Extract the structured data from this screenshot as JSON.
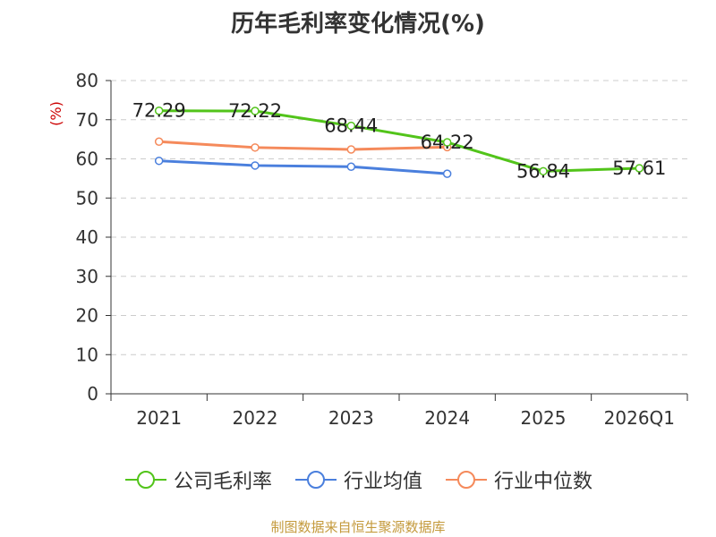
{
  "title": "历年毛利率变化情况(%)",
  "source": "制图数据来自恒生聚源数据库",
  "colors": {
    "axis": "#333333",
    "grid": "#cccccc",
    "tick_text": "#333333",
    "ylabel": "#cc0000"
  },
  "chart_data": {
    "type": "line",
    "title": "历年毛利率变化情况(%)",
    "xlabel": "",
    "ylabel": "(%)",
    "categories": [
      "2021",
      "2022",
      "2023",
      "2024",
      "2025",
      "2026Q1"
    ],
    "ylim": [
      0,
      80
    ],
    "yticks": [
      0,
      10,
      20,
      30,
      40,
      50,
      60,
      70,
      80
    ],
    "grid": true,
    "legend_position": "bottom",
    "series": [
      {
        "name": "公司毛利率",
        "color": "#52c41a",
        "values": [
          72.29,
          72.22,
          68.44,
          64.22,
          56.84,
          57.61
        ],
        "labels": [
          "72.29",
          "72.22",
          "68.44",
          "64.22",
          "56.84",
          "57.61"
        ]
      },
      {
        "name": "行业均值",
        "color": "#4a7fdd",
        "values": [
          59.5,
          58.3,
          58.0,
          56.2,
          null,
          null
        ]
      },
      {
        "name": "行业中位数",
        "color": "#f58a5b",
        "values": [
          64.4,
          62.9,
          62.4,
          63.0,
          null,
          null
        ]
      }
    ]
  }
}
